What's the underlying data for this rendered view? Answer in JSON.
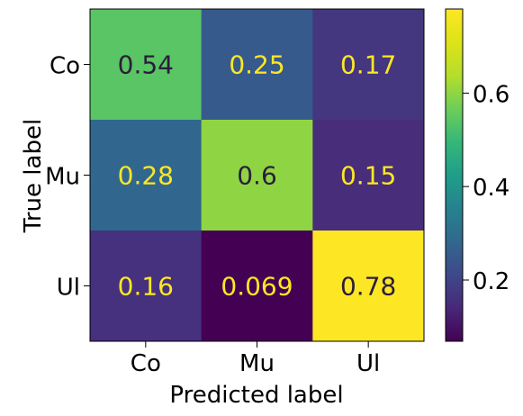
{
  "chart_data": {
    "type": "heatmap",
    "title": "",
    "xlabel": "Predicted label",
    "ylabel": "True label",
    "x_categories": [
      "Co",
      "Mu",
      "Ul"
    ],
    "y_categories": [
      "Co",
      "Mu",
      "Ul"
    ],
    "values": [
      [
        0.54,
        0.25,
        0.17
      ],
      [
        0.28,
        0.6,
        0.15
      ],
      [
        0.16,
        0.069,
        0.78
      ]
    ],
    "cell_labels": [
      [
        "0.54",
        "0.25",
        "0.17"
      ],
      [
        "0.28",
        "0.6",
        "0.15"
      ],
      [
        "0.16",
        "0.069",
        "0.78"
      ]
    ],
    "colormap": "viridis",
    "colorbar": {
      "min": 0.069,
      "max": 0.78,
      "ticks": [
        0.2,
        0.4,
        0.6
      ],
      "tick_labels": [
        "0.2",
        "0.4",
        "0.6"
      ]
    },
    "text_colors": {
      "light": "#fde725",
      "dark": "#2b1d3a"
    }
  }
}
